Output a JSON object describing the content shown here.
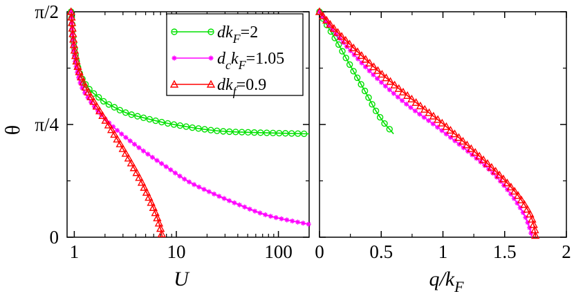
{
  "chart_data": [
    {
      "type": "line",
      "xscale": "log",
      "xlabel": "U",
      "ylabel": "θ",
      "xlim": [
        0.85,
        200
      ],
      "ylim": [
        0,
        1.5708
      ],
      "xticks": [
        {
          "v": 1,
          "label": "1"
        },
        {
          "v": 10,
          "label": "10"
        },
        {
          "v": 100,
          "label": "100"
        }
      ],
      "yticks": [
        {
          "v": 0,
          "label": "0"
        },
        {
          "v": 0.7854,
          "label": "π/4"
        },
        {
          "v": 1.5708,
          "label": "π/2"
        }
      ],
      "legend_position": "top-right",
      "series": [
        {
          "name": "dk_F=2",
          "legend": {
            "base": "dk",
            "sub": "F",
            "tail": "=2"
          },
          "color": "#00e000",
          "marker": "circle",
          "x": [
            0.93,
            1.0,
            1.1,
            1.25,
            1.45,
            1.7,
            2.0,
            2.4,
            2.9,
            3.6,
            4.6,
            6.0,
            8.0,
            11.5,
            17.5,
            34.0,
            200
          ],
          "y": [
            1.5708,
            1.33,
            1.17,
            1.08,
            1.02,
            0.98,
            0.94,
            0.91,
            0.88,
            0.855,
            0.835,
            0.815,
            0.795,
            0.775,
            0.755,
            0.735,
            0.72
          ]
        },
        {
          "name": "d_ck_F=1.05",
          "legend": {
            "base": "d",
            "sub": "c",
            "mid": "k",
            "sub2": "F",
            "tail": "=1.05"
          },
          "color": "#ff00ff",
          "marker": "star",
          "x": [
            0.93,
            1.0,
            1.15,
            1.4,
            1.8,
            2.4,
            3.4,
            5.0,
            8.0,
            13.0,
            22.0,
            40.0,
            80.0,
            200
          ],
          "y": [
            1.5708,
            1.27,
            1.07,
            0.96,
            0.86,
            0.77,
            0.68,
            0.59,
            0.49,
            0.39,
            0.31,
            0.23,
            0.15,
            0.09
          ]
        },
        {
          "name": "dk_f=0.9",
          "legend": {
            "base": "dk",
            "sub": "f",
            "tail": "=0.9"
          },
          "color": "#ff0000",
          "marker": "triangle",
          "x": [
            0.93,
            1.0,
            1.1,
            1.3,
            1.6,
            2.0,
            2.6,
            3.4,
            4.3,
            5.2,
            6.0,
            6.6,
            7.0,
            7.2,
            7.3
          ],
          "y": [
            1.5708,
            1.32,
            1.17,
            1.04,
            0.93,
            0.82,
            0.69,
            0.55,
            0.42,
            0.3,
            0.2,
            0.12,
            0.06,
            0.02,
            0.0
          ]
        }
      ]
    },
    {
      "type": "line",
      "xscale": "linear",
      "xlabel": "q/k_F",
      "xlabel_parts": {
        "base": "q/k",
        "sub": "F"
      },
      "ylabel": "θ",
      "xlim": [
        0,
        2
      ],
      "ylim": [
        0,
        1.5708
      ],
      "xticks": [
        {
          "v": 0,
          "label": "0"
        },
        {
          "v": 0.5,
          "label": "0.5"
        },
        {
          "v": 1,
          "label": "1"
        },
        {
          "v": 1.5,
          "label": "1.5"
        },
        {
          "v": 2,
          "label": "2"
        }
      ],
      "series": [
        {
          "name": "dk_F=2",
          "color": "#00e000",
          "marker": "circle",
          "x": [
            0.0,
            0.03,
            0.08,
            0.15,
            0.22,
            0.3,
            0.38,
            0.45,
            0.52,
            0.57,
            0.6
          ],
          "y": [
            1.5708,
            1.52,
            1.45,
            1.35,
            1.24,
            1.12,
            1.0,
            0.89,
            0.8,
            0.75,
            0.72
          ]
        },
        {
          "name": "d_ck_F=1.05",
          "color": "#ff00ff",
          "marker": "star",
          "x": [
            0.0,
            0.1,
            0.25,
            0.45,
            0.7,
            0.95,
            1.2,
            1.4,
            1.55,
            1.65,
            1.7,
            1.72
          ],
          "y": [
            1.5708,
            1.45,
            1.3,
            1.12,
            0.93,
            0.77,
            0.6,
            0.45,
            0.3,
            0.17,
            0.07,
            0.0
          ]
        },
        {
          "name": "dk_f=0.9",
          "color": "#ff0000",
          "marker": "triangle",
          "x": [
            0.0,
            0.1,
            0.25,
            0.5,
            0.75,
            1.0,
            1.25,
            1.45,
            1.6,
            1.7,
            1.74,
            1.75
          ],
          "y": [
            1.5708,
            1.47,
            1.34,
            1.14,
            0.96,
            0.79,
            0.6,
            0.44,
            0.3,
            0.17,
            0.07,
            0.0
          ]
        }
      ]
    }
  ]
}
